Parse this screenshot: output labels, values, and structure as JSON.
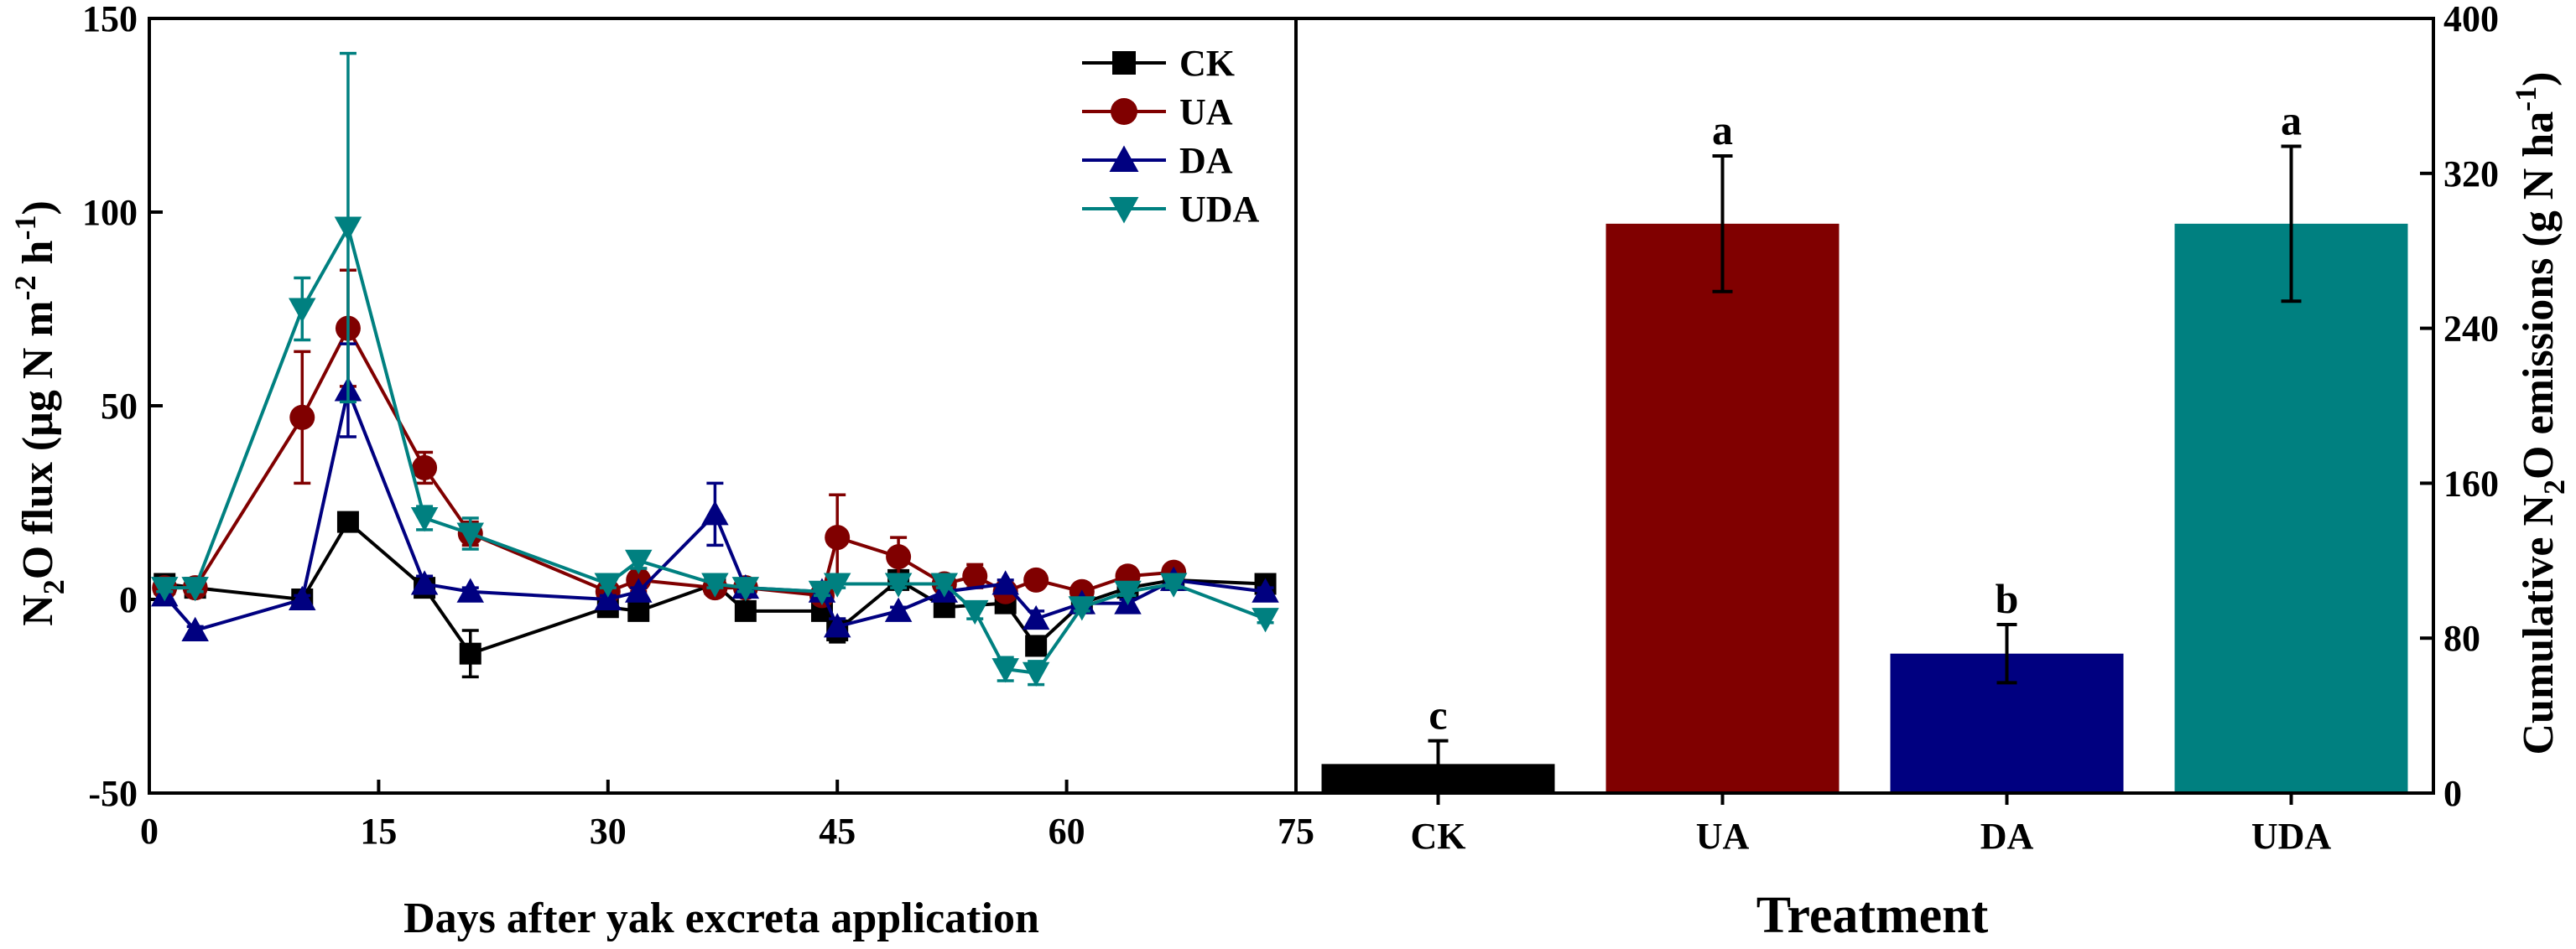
{
  "chart_data": [
    {
      "type": "line",
      "xlabel": "Days after yak excreta application",
      "ylabel": {
        "prefix": "N",
        "sub": "2",
        "mid": "O flux (μg N m",
        "sup1": "-2",
        "mid2": " h",
        "sup2": "-1",
        "suffix": ")"
      },
      "xlim": [
        0,
        75
      ],
      "ylim": [
        -50,
        150
      ],
      "xticks": [
        0,
        15,
        30,
        45,
        60,
        75
      ],
      "yticks": [
        -50,
        0,
        50,
        100,
        150
      ],
      "legend_position": "top-right",
      "series": [
        {
          "name": "CK",
          "color": "#000000",
          "marker": "square",
          "x": [
            1,
            3,
            10,
            13,
            18,
            21,
            30,
            32,
            37,
            39,
            44,
            45,
            49,
            52,
            56,
            58,
            61,
            64,
            67,
            73
          ],
          "y": [
            4,
            3,
            0,
            20,
            3,
            -14,
            -2,
            -3,
            4,
            -3,
            -3,
            -8,
            5,
            -2,
            -1,
            -12,
            -1,
            3,
            5,
            4
          ],
          "err": [
            1,
            1,
            1,
            2,
            2,
            6,
            1,
            1,
            1,
            1,
            1,
            3,
            1,
            1,
            1,
            2,
            1,
            1,
            1,
            1
          ]
        },
        {
          "name": "UA",
          "color": "#800000",
          "marker": "circle",
          "x": [
            1,
            3,
            10,
            13,
            18,
            21,
            30,
            32,
            37,
            39,
            44,
            45,
            49,
            52,
            54,
            56,
            58,
            61,
            64,
            67
          ],
          "y": [
            3,
            3,
            47,
            70,
            34,
            17,
            2,
            5,
            3,
            3,
            1,
            16,
            11,
            4,
            6,
            2,
            5,
            2,
            6,
            7
          ],
          "err": [
            1,
            1,
            17,
            15,
            4,
            3,
            1,
            3,
            1,
            1,
            1,
            11,
            5,
            2,
            3,
            1,
            1,
            1,
            1,
            1
          ]
        },
        {
          "name": "DA",
          "color": "#000080",
          "marker": "triangle-up",
          "x": [
            1,
            3,
            10,
            13,
            18,
            21,
            30,
            32,
            37,
            39,
            44,
            45,
            49,
            52,
            56,
            58,
            61,
            64,
            67,
            73
          ],
          "y": [
            1,
            -8,
            0,
            54,
            4,
            2,
            0,
            2,
            22,
            3,
            2,
            -7,
            -3,
            2,
            4,
            -5,
            -1,
            -1,
            5,
            2
          ],
          "err": [
            1,
            1,
            1,
            12,
            2,
            1,
            1,
            1,
            8,
            1,
            1,
            2,
            1,
            1,
            1,
            2,
            1,
            1,
            1,
            1
          ]
        },
        {
          "name": "UDA",
          "color": "#008080",
          "marker": "triangle-down",
          "x": [
            1,
            3,
            10,
            13,
            18,
            21,
            30,
            32,
            37,
            39,
            44,
            45,
            49,
            52,
            54,
            56,
            58,
            61,
            64,
            67,
            73
          ],
          "y": [
            3,
            3,
            75,
            96,
            21,
            17,
            4,
            10,
            4,
            3,
            2,
            4,
            4,
            4,
            -3,
            -18,
            -19,
            -2,
            2,
            4,
            -5
          ],
          "err": [
            1,
            1,
            8,
            45,
            3,
            4,
            1,
            2,
            1,
            1,
            1,
            1,
            1,
            1,
            2,
            3,
            3,
            1,
            1,
            1,
            1
          ]
        }
      ]
    },
    {
      "type": "bar",
      "title": "",
      "xlabel": "Treatment",
      "ylabel": {
        "prefix": "Cumulative N",
        "sub": "2",
        "mid": "O emissions (g N ha",
        "sup": "-1",
        "suffix": ")"
      },
      "ylim": [
        0,
        400
      ],
      "yticks": [
        0,
        80,
        160,
        240,
        320,
        400
      ],
      "categories": [
        "CK",
        "UA",
        "DA",
        "UDA"
      ],
      "values": [
        15,
        294,
        72,
        294
      ],
      "errors": [
        12,
        35,
        15,
        40
      ],
      "significance": [
        "c",
        "a",
        "b",
        "a"
      ],
      "colors": [
        "#000000",
        "#800000",
        "#000080",
        "#008080"
      ]
    }
  ]
}
